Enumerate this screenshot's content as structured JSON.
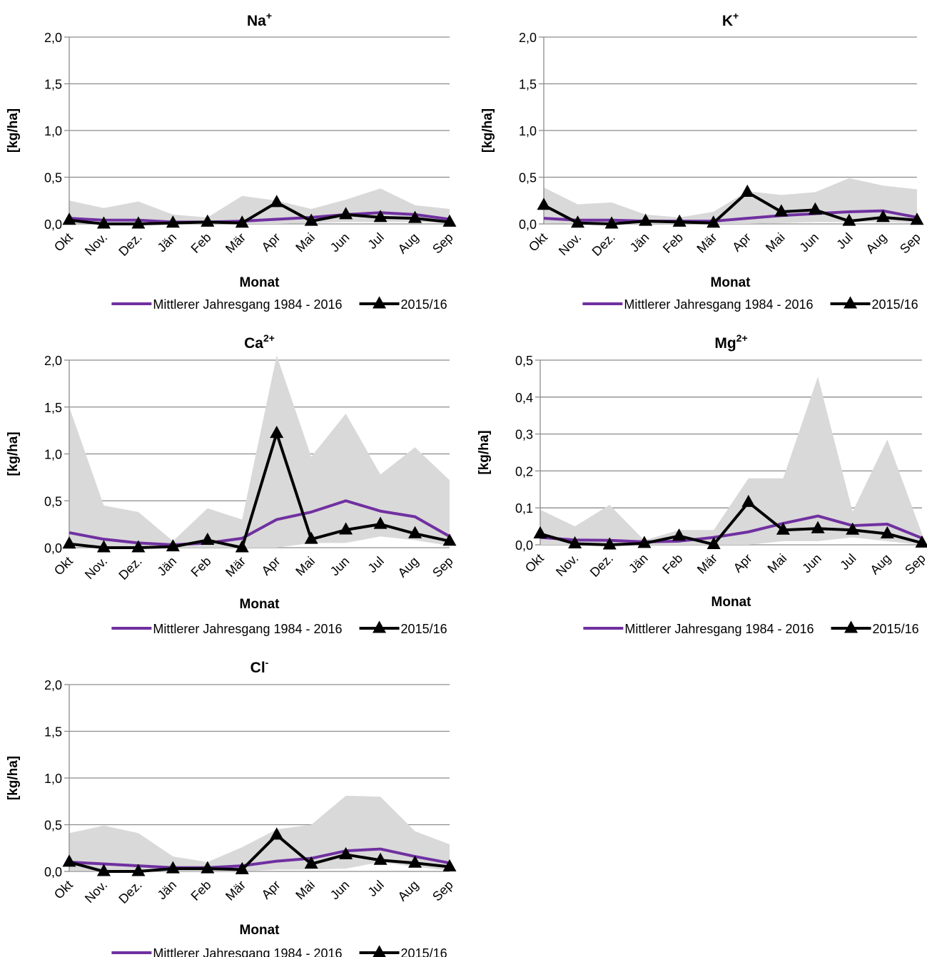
{
  "colors": {
    "mean_line": "#7030a0",
    "year_line": "#000000",
    "band": "#d9d9d9",
    "grid": "#8c8c8c"
  },
  "chart_data": [
    {
      "type": "line",
      "title": "Na",
      "title_sup": "+",
      "xlabel": "Monat",
      "ylabel": "[kg/ha]",
      "ylim": [
        0,
        2.0
      ],
      "yticks": [
        "0,0",
        "0,5",
        "1,0",
        "1,5",
        "2,0"
      ],
      "grid": true,
      "legend": "bottom",
      "categories": [
        "Okt",
        "Nov.",
        "Dez.",
        "Jän",
        "Feb",
        "Mär",
        "Apr",
        "Mai",
        "Jun",
        "Jul",
        "Aug",
        "Sep"
      ],
      "band": {
        "min": [
          0.01,
          0.0,
          0.0,
          0.0,
          0.0,
          0.0,
          0.0,
          0.01,
          0.02,
          0.02,
          0.02,
          0.01
        ],
        "max": [
          0.25,
          0.17,
          0.24,
          0.1,
          0.07,
          0.3,
          0.25,
          0.16,
          0.26,
          0.38,
          0.2,
          0.16
        ]
      },
      "series": [
        {
          "name": "Mittlerer Jahresgang 1984 - 2016",
          "values": [
            0.06,
            0.04,
            0.04,
            0.02,
            0.02,
            0.03,
            0.05,
            0.07,
            0.1,
            0.12,
            0.1,
            0.05
          ]
        },
        {
          "name": "2015/16",
          "values": [
            0.04,
            0.0,
            0.0,
            0.01,
            0.02,
            0.01,
            0.23,
            0.03,
            0.1,
            0.07,
            0.06,
            0.02
          ],
          "marker": "triangle"
        }
      ]
    },
    {
      "type": "line",
      "title": "K",
      "title_sup": "+",
      "xlabel": "Monat",
      "ylabel": "[kg/ha]",
      "ylim": [
        0,
        2.0
      ],
      "yticks": [
        "0,0",
        "0,5",
        "1,0",
        "1,5",
        "2,0"
      ],
      "grid": true,
      "legend": "bottom",
      "categories": [
        "Okt",
        "Nov.",
        "Dez.",
        "Jän",
        "Feb",
        "Mär",
        "Apr",
        "Mai",
        "Jun",
        "Jul",
        "Aug",
        "Sep"
      ],
      "band": {
        "min": [
          0.01,
          0.0,
          0.0,
          0.0,
          0.0,
          0.0,
          0.0,
          0.01,
          0.02,
          0.02,
          0.02,
          0.01
        ],
        "max": [
          0.39,
          0.21,
          0.23,
          0.1,
          0.07,
          0.13,
          0.35,
          0.31,
          0.34,
          0.49,
          0.41,
          0.37
        ]
      },
      "series": [
        {
          "name": "Mittlerer Jahresgang 1984 - 2016",
          "values": [
            0.06,
            0.04,
            0.04,
            0.03,
            0.03,
            0.03,
            0.06,
            0.09,
            0.11,
            0.13,
            0.14,
            0.07
          ]
        },
        {
          "name": "2015/16",
          "values": [
            0.2,
            0.01,
            0.0,
            0.03,
            0.02,
            0.01,
            0.34,
            0.13,
            0.15,
            0.03,
            0.07,
            0.04
          ],
          "marker": "triangle"
        }
      ]
    },
    {
      "type": "line",
      "title": "Ca",
      "title_sup": "2+",
      "xlabel": "Monat",
      "ylabel": "[kg/ha]",
      "ylim": [
        0,
        2.0
      ],
      "yticks": [
        "0,0",
        "0,5",
        "1,0",
        "1,5",
        "2,0"
      ],
      "grid": true,
      "legend": "bottom",
      "categories": [
        "Okt",
        "Nov.",
        "Dez.",
        "Jän",
        "Feb",
        "Mär",
        "Apr",
        "Mai",
        "Jun",
        "Jul",
        "Aug",
        "Sep"
      ],
      "band": {
        "min": [
          0.02,
          0.01,
          0.0,
          0.0,
          0.0,
          0.0,
          0.0,
          0.05,
          0.05,
          0.12,
          0.08,
          0.02
        ],
        "max": [
          1.5,
          0.45,
          0.38,
          0.07,
          0.42,
          0.3,
          2.05,
          0.97,
          1.43,
          0.78,
          1.07,
          0.72
        ]
      },
      "series": [
        {
          "name": "Mittlerer Jahresgang 1984 - 2016",
          "values": [
            0.16,
            0.09,
            0.05,
            0.03,
            0.05,
            0.1,
            0.3,
            0.38,
            0.5,
            0.39,
            0.33,
            0.12
          ]
        },
        {
          "name": "2015/16",
          "values": [
            0.04,
            0.0,
            0.0,
            0.01,
            0.08,
            0.0,
            1.22,
            0.09,
            0.19,
            0.25,
            0.15,
            0.07
          ],
          "marker": "triangle"
        }
      ]
    },
    {
      "type": "line",
      "title": "Mg",
      "title_sup": "2+",
      "xlabel": "Monat",
      "ylabel": "[kg/ha]",
      "ylim": [
        0,
        0.5
      ],
      "yticks": [
        "0,0",
        "0,1",
        "0,2",
        "0,3",
        "0,4",
        "0,5"
      ],
      "grid": true,
      "legend": "bottom",
      "categories": [
        "Okt",
        "Nov.",
        "Dez.",
        "Jän",
        "Feb",
        "Mär",
        "Apr",
        "Mai",
        "Jun",
        "Jul",
        "Aug",
        "Sep"
      ],
      "band": {
        "min": [
          0.0,
          0.0,
          0.0,
          0.0,
          0.0,
          0.0,
          0.0,
          0.01,
          0.01,
          0.02,
          0.01,
          0.0
        ],
        "max": [
          0.095,
          0.05,
          0.108,
          0.012,
          0.04,
          0.04,
          0.18,
          0.18,
          0.455,
          0.09,
          0.285,
          0.03
        ]
      },
      "series": [
        {
          "name": "Mittlerer Jahresgang 1984 - 2016",
          "values": [
            0.02,
            0.013,
            0.012,
            0.008,
            0.01,
            0.02,
            0.035,
            0.058,
            0.078,
            0.052,
            0.056,
            0.018
          ]
        },
        {
          "name": "2015/16",
          "values": [
            0.03,
            0.003,
            0.0,
            0.004,
            0.024,
            0.001,
            0.115,
            0.04,
            0.044,
            0.04,
            0.03,
            0.005
          ],
          "marker": "triangle"
        }
      ]
    },
    {
      "type": "line",
      "title": "Cl",
      "title_sup": "-",
      "xlabel": "Monat",
      "ylabel": "[kg/ha]",
      "ylim": [
        0,
        2.0
      ],
      "yticks": [
        "0,0",
        "0,5",
        "1,0",
        "1,5",
        "2,0"
      ],
      "grid": true,
      "legend": "bottom",
      "categories": [
        "Okt",
        "Nov.",
        "Dez.",
        "Jän",
        "Feb",
        "Mär",
        "Apr",
        "Mai",
        "Jun",
        "Jul",
        "Aug",
        "Sep"
      ],
      "band": {
        "min": [
          0.01,
          0.0,
          0.0,
          0.0,
          0.0,
          0.0,
          0.02,
          0.02,
          0.03,
          0.1,
          0.05,
          0.01
        ],
        "max": [
          0.41,
          0.49,
          0.41,
          0.16,
          0.1,
          0.26,
          0.45,
          0.5,
          0.81,
          0.8,
          0.43,
          0.29
        ]
      },
      "series": [
        {
          "name": "Mittlerer Jahresgang 1984 - 2016",
          "values": [
            0.1,
            0.08,
            0.06,
            0.04,
            0.04,
            0.06,
            0.11,
            0.14,
            0.22,
            0.24,
            0.16,
            0.09
          ]
        },
        {
          "name": "2015/16",
          "values": [
            0.1,
            0.0,
            0.0,
            0.03,
            0.03,
            0.02,
            0.39,
            0.08,
            0.18,
            0.12,
            0.09,
            0.05
          ],
          "marker": "triangle"
        }
      ]
    }
  ]
}
